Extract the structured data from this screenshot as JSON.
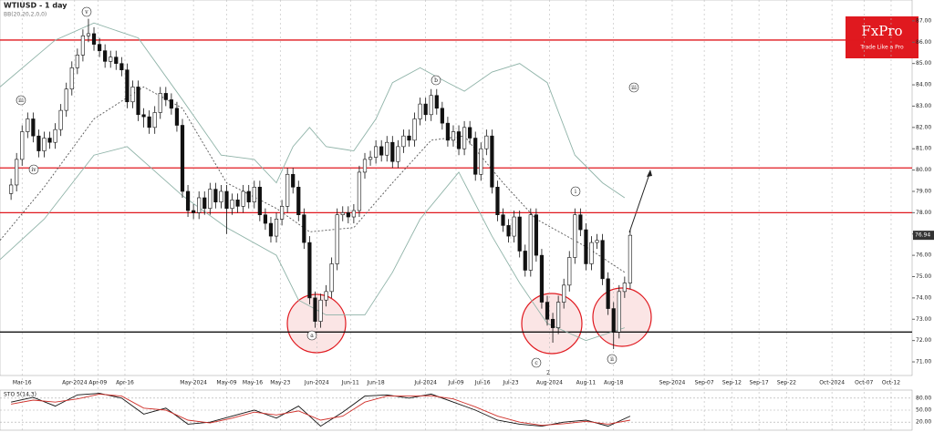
{
  "chart_data": {
    "type": "candlestick",
    "title": "WTIUSD - 1 day",
    "subtitle": "BB(20,20,2,0,0)",
    "brand": "FxPro",
    "tagline": "Trade Like a Pro",
    "x": [
      0,
      1,
      2,
      3,
      4,
      5,
      6,
      7,
      8,
      9,
      10,
      11,
      12,
      13,
      14,
      15,
      16,
      17,
      18,
      19,
      20,
      21,
      22,
      23,
      24,
      25,
      26,
      27,
      28,
      29,
      30,
      31,
      32,
      33,
      34,
      35,
      36,
      37,
      38,
      39,
      40,
      41,
      42,
      43,
      44,
      45,
      46,
      47,
      48,
      49,
      50,
      51,
      52,
      53,
      54,
      55,
      56,
      57,
      58,
      59,
      60,
      61,
      62,
      63,
      64,
      65,
      66,
      67,
      68,
      69,
      70,
      71,
      72,
      73,
      74,
      75,
      76,
      77,
      78,
      79,
      80,
      81,
      82,
      83,
      84,
      85,
      86,
      87,
      88,
      89,
      90,
      91,
      92,
      93,
      94,
      95,
      96,
      97,
      98,
      99,
      100,
      101,
      102,
      103,
      104,
      105,
      106,
      107,
      108,
      109,
      110,
      111,
      112
    ],
    "open": [
      78.9,
      79.3,
      80.5,
      81.8,
      82.4,
      81.6,
      80.9,
      81.5,
      81.3,
      81.9,
      82.8,
      83.8,
      84.8,
      85.4,
      86.3,
      86.4,
      85.9,
      85.6,
      85.1,
      85.3,
      85.0,
      84.7,
      83.2,
      83.9,
      82.6,
      82.5,
      82.0,
      82.7,
      83.6,
      83.3,
      82.9,
      82.1,
      79.0,
      78.1,
      78.0,
      78.7,
      78.2,
      79.1,
      78.5,
      79.0,
      78.2,
      78.6,
      78.3,
      79.0,
      78.5,
      79.2,
      77.9,
      77.5,
      76.9,
      77.7,
      78.3,
      79.8,
      79.2,
      77.9,
      76.6,
      74.0,
      72.9,
      73.9,
      74.3,
      75.6,
      77.9,
      78.0,
      77.8,
      78.1,
      79.9,
      80.5,
      80.6,
      81.1,
      80.7,
      81.3,
      80.4,
      81.1,
      81.6,
      81.4,
      82.4,
      83.1,
      82.6,
      83.5,
      82.9,
      82.2,
      81.4,
      81.8,
      81.0,
      82.0,
      81.5,
      79.8,
      81.0,
      81.6,
      79.2,
      77.9,
      77.4,
      76.9,
      77.8,
      76.2,
      75.3,
      77.9,
      76.0,
      73.8,
      73.0,
      72.6,
      73.8,
      74.6,
      75.9,
      77.9,
      77.2,
      75.6,
      76.6,
      76.7,
      74.9,
      73.5,
      72.4,
      74.3,
      74.7
    ],
    "high": [
      79.6,
      80.8,
      82.1,
      82.7,
      82.7,
      81.9,
      81.8,
      81.8,
      82.2,
      83.1,
      84.1,
      85.1,
      85.7,
      86.6,
      87.1,
      86.7,
      86.2,
      85.9,
      85.6,
      85.6,
      85.3,
      85.0,
      84.2,
      84.2,
      82.9,
      82.8,
      83.0,
      83.9,
      83.9,
      83.6,
      83.2,
      82.4,
      79.3,
      78.4,
      79.0,
      79.0,
      79.4,
      79.4,
      79.3,
      79.3,
      78.9,
      78.9,
      79.3,
      79.3,
      79.5,
      79.5,
      78.2,
      77.8,
      78.0,
      78.6,
      80.1,
      80.1,
      79.5,
      78.2,
      76.9,
      74.3,
      74.2,
      74.6,
      75.9,
      78.2,
      78.3,
      78.3,
      78.4,
      80.2,
      80.8,
      80.9,
      81.4,
      81.4,
      81.6,
      81.6,
      81.4,
      81.9,
      81.9,
      82.7,
      83.4,
      83.4,
      83.8,
      83.8,
      83.2,
      82.5,
      82.1,
      82.1,
      82.3,
      82.3,
      81.8,
      81.3,
      81.9,
      81.9,
      79.5,
      78.2,
      77.7,
      78.1,
      78.1,
      76.5,
      78.2,
      78.2,
      76.3,
      74.1,
      73.3,
      74.1,
      74.9,
      76.2,
      78.2,
      78.2,
      77.5,
      76.9,
      77.0,
      77.0,
      75.2,
      73.8,
      74.6,
      75.0,
      77.2
    ],
    "low": [
      78.6,
      79.0,
      80.2,
      81.5,
      81.3,
      80.6,
      80.6,
      81.0,
      81.0,
      81.6,
      82.5,
      83.5,
      84.5,
      85.1,
      86.0,
      85.6,
      85.3,
      84.8,
      84.8,
      84.7,
      84.4,
      82.9,
      82.9,
      82.3,
      82.0,
      81.7,
      81.7,
      82.4,
      83.0,
      82.6,
      81.8,
      78.7,
      77.8,
      77.7,
      77.7,
      77.9,
      77.9,
      78.2,
      78.2,
      77.0,
      77.9,
      78.0,
      78.0,
      78.2,
      78.2,
      77.6,
      77.2,
      76.6,
      76.6,
      77.4,
      78.0,
      78.9,
      77.6,
      76.3,
      73.7,
      72.6,
      72.6,
      73.6,
      74.0,
      75.3,
      77.6,
      77.5,
      77.5,
      77.8,
      79.6,
      80.2,
      80.3,
      80.4,
      80.4,
      80.1,
      80.1,
      80.8,
      81.1,
      81.1,
      82.1,
      82.3,
      82.3,
      82.6,
      81.9,
      81.1,
      81.1,
      80.7,
      80.7,
      81.2,
      79.5,
      79.5,
      80.7,
      78.9,
      77.6,
      77.1,
      76.6,
      76.6,
      75.9,
      75.0,
      75.0,
      75.7,
      73.5,
      72.7,
      71.9,
      72.3,
      73.5,
      74.3,
      75.6,
      76.9,
      75.3,
      75.3,
      76.3,
      74.6,
      73.2,
      71.6,
      72.1,
      74.0,
      74.4
    ],
    "close": [
      79.3,
      80.5,
      81.8,
      82.4,
      81.6,
      80.9,
      81.5,
      81.3,
      81.9,
      82.8,
      83.8,
      84.8,
      85.4,
      86.3,
      86.4,
      85.9,
      85.6,
      85.1,
      85.3,
      85.0,
      84.7,
      83.2,
      83.9,
      82.6,
      82.5,
      82.0,
      82.7,
      83.6,
      83.3,
      82.9,
      82.1,
      79.0,
      78.1,
      78.0,
      78.7,
      78.2,
      79.1,
      78.5,
      79.0,
      78.2,
      78.6,
      78.3,
      79.0,
      78.5,
      79.2,
      77.9,
      77.5,
      76.9,
      77.7,
      78.3,
      79.8,
      79.2,
      77.9,
      76.6,
      74.0,
      72.9,
      73.9,
      74.3,
      75.6,
      77.9,
      78.0,
      77.8,
      78.1,
      79.9,
      80.5,
      80.6,
      81.1,
      80.7,
      81.3,
      80.4,
      81.1,
      81.6,
      81.4,
      82.4,
      83.1,
      82.6,
      83.5,
      82.9,
      82.2,
      81.4,
      81.8,
      81.0,
      82.0,
      81.5,
      79.8,
      81.0,
      81.6,
      79.2,
      77.9,
      77.4,
      76.9,
      77.8,
      76.2,
      75.3,
      77.9,
      76.0,
      73.8,
      73.0,
      72.6,
      73.8,
      74.6,
      75.9,
      77.9,
      77.2,
      75.6,
      76.6,
      76.7,
      74.9,
      73.5,
      72.4,
      74.3,
      74.7,
      76.94
    ],
    "bands": [
      {
        "x": [
          -2,
          8,
          15,
          23,
          31,
          38,
          44,
          48,
          51,
          54,
          57,
          62,
          66,
          69,
          74,
          79,
          82,
          87,
          92,
          97,
          102,
          107,
          111
        ],
        "values": [
          83.9,
          86.1,
          86.9,
          86.2,
          83.3,
          80.7,
          80.5,
          79.4,
          81.1,
          82.0,
          81.1,
          80.9,
          82.4,
          84.1,
          84.8,
          84.1,
          83.7,
          84.6,
          85.0,
          84.1,
          80.7,
          79.4,
          78.7
        ],
        "color": "#8fb3a8"
      },
      {
        "x": [
          -2,
          6,
          15,
          24,
          31,
          39,
          48,
          54,
          62,
          69,
          76,
          82,
          89,
          95,
          104,
          111
        ],
        "values": [
          76.7,
          79.2,
          82.4,
          83.9,
          82.9,
          79.4,
          78.2,
          77.1,
          77.3,
          79.4,
          81.4,
          81.6,
          79.4,
          77.7,
          76.4,
          75.2
        ],
        "color": "#555555",
        "dashed": true
      },
      {
        "x": [
          -2,
          6,
          15,
          21,
          31,
          39,
          48,
          52,
          57,
          64,
          69,
          74,
          81,
          87,
          92,
          97,
          104,
          111
        ],
        "values": [
          75.8,
          77.7,
          80.7,
          81.1,
          78.8,
          77.3,
          76.0,
          73.9,
          73.2,
          73.2,
          75.2,
          77.7,
          79.9,
          76.9,
          74.7,
          72.8,
          72.0,
          72.6
        ],
        "color": "#8fb3a8"
      }
    ],
    "levels": [
      {
        "value": 86.1,
        "color": "#e0191f"
      },
      {
        "value": 80.1,
        "color": "#e0191f"
      },
      {
        "value": 78.0,
        "color": "#e0191f"
      },
      {
        "value": 72.4,
        "color": "#111111"
      }
    ],
    "annotations": [
      "v",
      "iii",
      "iv",
      "a",
      "b",
      "c",
      "2",
      "i",
      "ii",
      "iii"
    ],
    "xlim": [
      -2,
      163
    ],
    "ylim": [
      70.36,
      87.98
    ],
    "xticks": [
      {
        "value": 2,
        "label": "Mar-16"
      },
      {
        "value": 11.5,
        "label": "Apr-2024"
      },
      {
        "value": 15.7,
        "label": "Apr-09"
      },
      {
        "value": 20.6,
        "label": "Apr-16"
      },
      {
        "value": 33,
        "label": "May-2024"
      },
      {
        "value": 39,
        "label": "May-09"
      },
      {
        "value": 43.7,
        "label": "May-16"
      },
      {
        "value": 48.7,
        "label": "May-23"
      },
      {
        "value": 55.3,
        "label": "Jun-2024"
      },
      {
        "value": 61.4,
        "label": "Jun-11"
      },
      {
        "value": 66,
        "label": "Jun-18"
      },
      {
        "value": 75,
        "label": "Jul-2024"
      },
      {
        "value": 80.5,
        "label": "Jul-09"
      },
      {
        "value": 85.3,
        "label": "Jul-16"
      },
      {
        "value": 90.4,
        "label": "Jul-23"
      },
      {
        "value": 97.4,
        "label": "Aug-2024"
      },
      {
        "value": 104,
        "label": "Aug-11"
      },
      {
        "value": 109,
        "label": "Aug-18"
      },
      {
        "value": 119.6,
        "label": "Sep-2024"
      },
      {
        "value": 125.4,
        "label": "Sep-07"
      },
      {
        "value": 130.4,
        "label": "Sep-12"
      },
      {
        "value": 135.3,
        "label": "Sep-17"
      },
      {
        "value": 140.3,
        "label": "Sep-22"
      },
      {
        "value": 148.5,
        "label": "Oct-2024"
      },
      {
        "value": 154.3,
        "label": "Oct-07"
      },
      {
        "value": 159.2,
        "label": "Oct-12"
      }
    ],
    "yticks": [
      {
        "value": 71,
        "label": "71.00"
      },
      {
        "value": 72,
        "label": "72.00"
      },
      {
        "value": 73,
        "label": "73.00"
      },
      {
        "value": 74,
        "label": "74.00"
      },
      {
        "value": 75,
        "label": "75.00"
      },
      {
        "value": 76,
        "label": "76.00"
      },
      {
        "value": 77,
        "label": "77.00"
      },
      {
        "value": 78,
        "label": "78.00"
      },
      {
        "value": 79,
        "label": "79.00"
      },
      {
        "value": 80,
        "label": "80.00"
      },
      {
        "value": 81,
        "label": "81.00"
      },
      {
        "value": 82,
        "label": "82.00"
      },
      {
        "value": 83,
        "label": "83.00"
      },
      {
        "value": 84,
        "label": "84.00"
      },
      {
        "value": 85,
        "label": "85.00"
      },
      {
        "value": 86,
        "label": "86.00"
      },
      {
        "value": 87,
        "label": "87.00"
      }
    ],
    "oscillator": {
      "title": "STO 5(14,3)",
      "ylim": [
        0,
        100
      ],
      "yticks": [
        {
          "value": 80,
          "label": "80.00"
        },
        {
          "value": 50,
          "label": "50.00"
        },
        {
          "value": 20,
          "label": "20.00"
        }
      ],
      "x": [
        0,
        4,
        8,
        12,
        16,
        20,
        24,
        28,
        32,
        36,
        40,
        44,
        48,
        52,
        56,
        60,
        64,
        68,
        72,
        76,
        80,
        84,
        88,
        92,
        96,
        100,
        104,
        108,
        112
      ],
      "series": [
        {
          "color": "#111111",
          "values": [
            70,
            82,
            60,
            88,
            92,
            80,
            40,
            55,
            15,
            20,
            35,
            50,
            30,
            60,
            10,
            45,
            85,
            88,
            80,
            90,
            70,
            50,
            25,
            15,
            10,
            20,
            25,
            10,
            35
          ]
        },
        {
          "color": "#d0302a",
          "values": [
            65,
            75,
            70,
            78,
            90,
            85,
            55,
            50,
            25,
            18,
            30,
            45,
            38,
            48,
            25,
            35,
            70,
            85,
            85,
            86,
            78,
            58,
            35,
            20,
            12,
            16,
            22,
            15,
            25
          ]
        }
      ]
    }
  }
}
